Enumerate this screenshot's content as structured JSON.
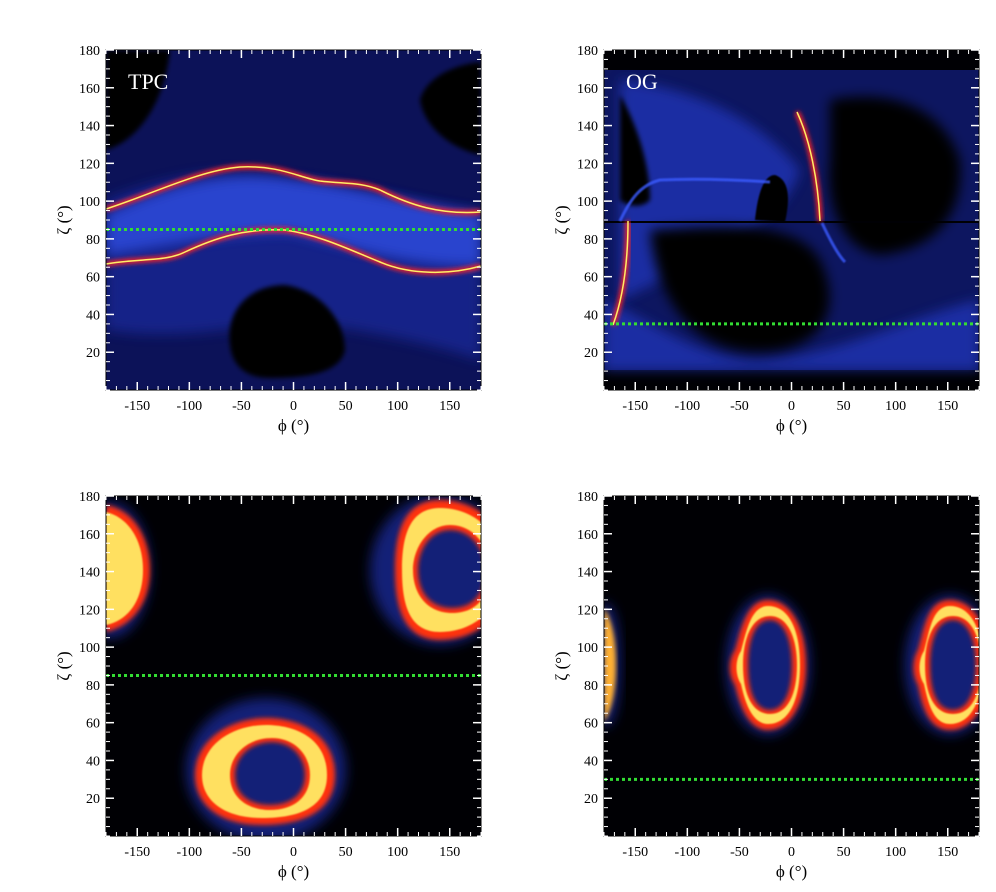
{
  "chart_data": [
    {
      "type": "heatmap",
      "panel_label": "TPC",
      "xlabel": "ϕ (°)",
      "ylabel": "ζ (°)",
      "xlim": [
        -180,
        180
      ],
      "ylim": [
        0,
        180
      ],
      "x_ticks": [
        -150,
        -100,
        -50,
        0,
        50,
        100,
        150
      ],
      "y_ticks": [
        20,
        40,
        60,
        80,
        100,
        120,
        140,
        160,
        180
      ],
      "reference_line": {
        "y": 85,
        "color": "#33dd33",
        "style": "dotted"
      },
      "colormap": "black-blue-red-yellow-white"
    },
    {
      "type": "heatmap",
      "panel_label": "OG",
      "xlabel": "ϕ (°)",
      "ylabel": "ζ (°)",
      "xlim": [
        -180,
        180
      ],
      "ylim": [
        0,
        180
      ],
      "x_ticks": [
        -150,
        -100,
        -50,
        0,
        50,
        100,
        150
      ],
      "y_ticks": [
        20,
        40,
        60,
        80,
        100,
        120,
        140,
        160,
        180
      ],
      "reference_line": {
        "y": 35,
        "color": "#33dd33",
        "style": "dotted"
      },
      "colormap": "black-blue-red-yellow-white"
    },
    {
      "type": "heatmap",
      "panel_label": "",
      "xlabel": "ϕ (°)",
      "ylabel": "ζ (°)",
      "xlim": [
        -180,
        180
      ],
      "ylim": [
        0,
        180
      ],
      "x_ticks": [
        -150,
        -100,
        -50,
        0,
        50,
        100,
        150
      ],
      "y_ticks": [
        20,
        40,
        60,
        80,
        100,
        120,
        140,
        160,
        180
      ],
      "reference_line": {
        "y": 85,
        "color": "#33dd33",
        "style": "dotted"
      },
      "colormap": "black-blue-red-yellow-white"
    },
    {
      "type": "heatmap",
      "panel_label": "",
      "xlabel": "ϕ (°)",
      "ylabel": "ζ (°)",
      "xlim": [
        -180,
        180
      ],
      "ylim": [
        0,
        180
      ],
      "x_ticks": [
        -150,
        -100,
        -50,
        0,
        50,
        100,
        150
      ],
      "y_ticks": [
        20,
        40,
        60,
        80,
        100,
        120,
        140,
        160,
        180
      ],
      "reference_line": {
        "y": 30,
        "color": "#33dd33",
        "style": "dotted"
      },
      "colormap": "black-blue-red-yellow-white"
    }
  ]
}
